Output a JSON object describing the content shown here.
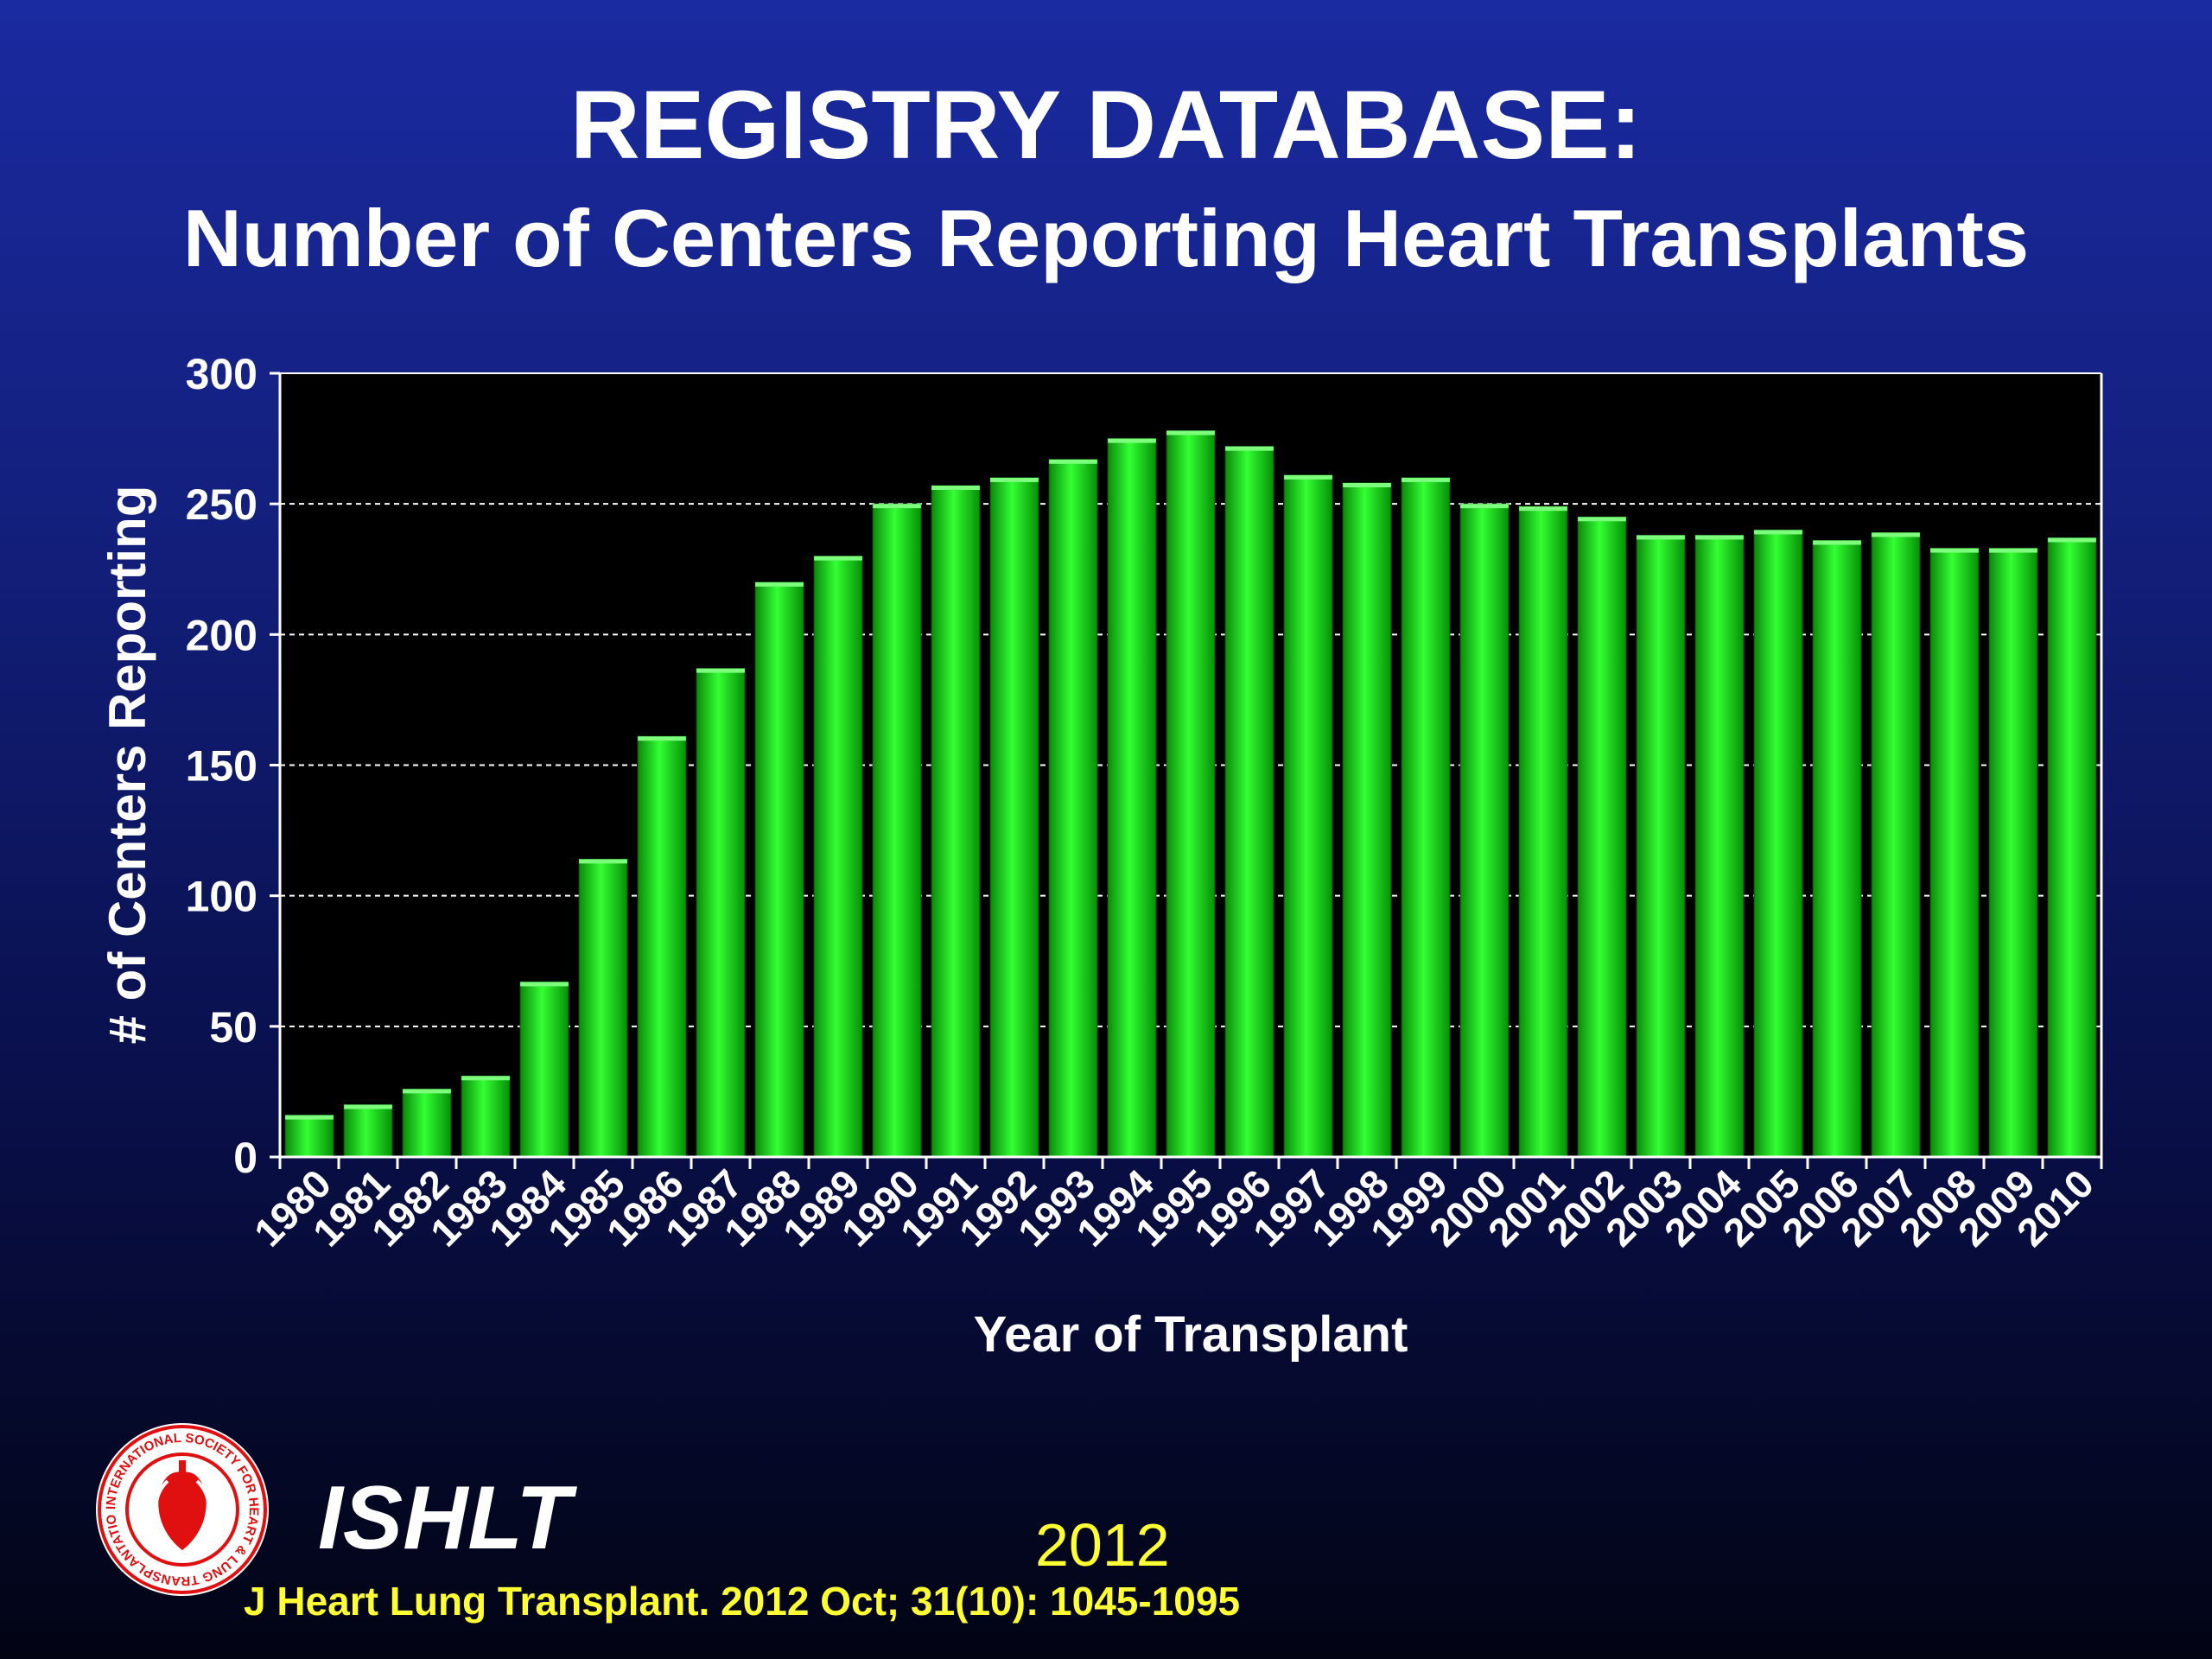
{
  "header": {
    "title": "REGISTRY DATABASE:",
    "subtitle": "Number of Centers Reporting Heart Transplants"
  },
  "chart_data": {
    "type": "bar",
    "xlabel": "Year of Transplant",
    "ylabel": "# of Centers Reporting",
    "ylim": [
      0,
      300
    ],
    "yticks": [
      0,
      50,
      100,
      150,
      200,
      250,
      300
    ],
    "grid": true,
    "categories": [
      "1980",
      "1981",
      "1982",
      "1983",
      "1984",
      "1985",
      "1986",
      "1987",
      "1988",
      "1989",
      "1990",
      "1991",
      "1992",
      "1993",
      "1994",
      "1995",
      "1996",
      "1997",
      "1998",
      "1999",
      "2000",
      "2001",
      "2002",
      "2003",
      "2004",
      "2005",
      "2006",
      "2007",
      "2008",
      "2009",
      "2010"
    ],
    "values": [
      16,
      20,
      26,
      31,
      67,
      114,
      161,
      187,
      220,
      230,
      250,
      257,
      260,
      267,
      275,
      278,
      272,
      261,
      258,
      260,
      250,
      249,
      245,
      238,
      238,
      240,
      236,
      239,
      233,
      233,
      237
    ],
    "colors": {
      "bar": "#22ee22",
      "plot_bg": "#000000",
      "grid": "#ffffff",
      "text": "#ffffff"
    }
  },
  "footer": {
    "brand": "ISHLT",
    "year": "2012",
    "citation": "J Heart Lung Transplant.  2012 Oct; 31(10): 1045-1095",
    "logo_ring_text": "INTERNATIONAL SOCIETY FOR HEART & LUNG TRANSPLANTATION"
  }
}
